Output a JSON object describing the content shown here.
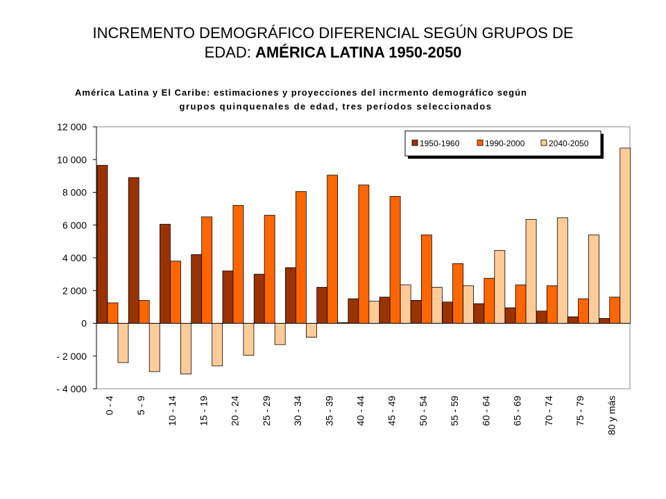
{
  "slide": {
    "title_line1": "INCREMENTO DEMOGRÁFICO DIFERENCIAL SEGÚN GRUPOS DE",
    "title_line2_plain": "EDAD: ",
    "title_line2_bold": "AMÉRICA LATINA 1950-2050"
  },
  "chart_data": {
    "type": "bar",
    "title": "América Latina y El Caribe: estimaciones y proyecciones del incrmento demográfico según grupos quinquenales de edad, tres períodos seleccionados",
    "title_lines": [
      "América Latina y El Caribe: estimaciones y proyecciones del incrmento demográfico según",
      "grupos quinquenales de edad, tres períodos seleccionados"
    ],
    "xlabel": "",
    "ylabel": "",
    "ylim": [
      -4000,
      12000
    ],
    "yticks": [
      12000,
      10000,
      8000,
      6000,
      4000,
      2000,
      0,
      -2000,
      -4000
    ],
    "ytick_labels": [
      "12 000",
      "10 000",
      "8 000",
      "6 000",
      "4 000",
      "2 000",
      "0",
      "- 2 000",
      "- 4 000"
    ],
    "grid": false,
    "legend_position": "top-right",
    "categories": [
      "0 - 4",
      "5 - 9",
      "10 - 14",
      "15 - 19",
      "20 - 24",
      "25 - 29",
      "30 - 34",
      "35 - 39",
      "40 - 44",
      "45 - 49",
      "50 - 54",
      "55 - 59",
      "60 - 64",
      "65 - 69",
      "70 - 74",
      "75 - 79",
      "80 y más"
    ],
    "series": [
      {
        "name": "1950-1960",
        "color": "#993300",
        "values": [
          9650,
          8900,
          6050,
          4200,
          3200,
          3000,
          3400,
          2200,
          1500,
          1600,
          1400,
          1300,
          1200,
          950,
          750,
          400,
          300
        ]
      },
      {
        "name": "1990-2000",
        "color": "#ff6600",
        "values": [
          1250,
          1400,
          3800,
          6500,
          7200,
          6600,
          8050,
          9050,
          8450,
          7750,
          5400,
          3650,
          2750,
          2350,
          2300,
          1500,
          1600
        ]
      },
      {
        "name": "2040-2050",
        "color": "#ffcc99",
        "values": [
          -2400,
          -2950,
          -3100,
          -2600,
          -1950,
          -1300,
          -850,
          50,
          1350,
          2350,
          2200,
          2300,
          4450,
          6350,
          6450,
          5400,
          10700
        ]
      }
    ]
  }
}
